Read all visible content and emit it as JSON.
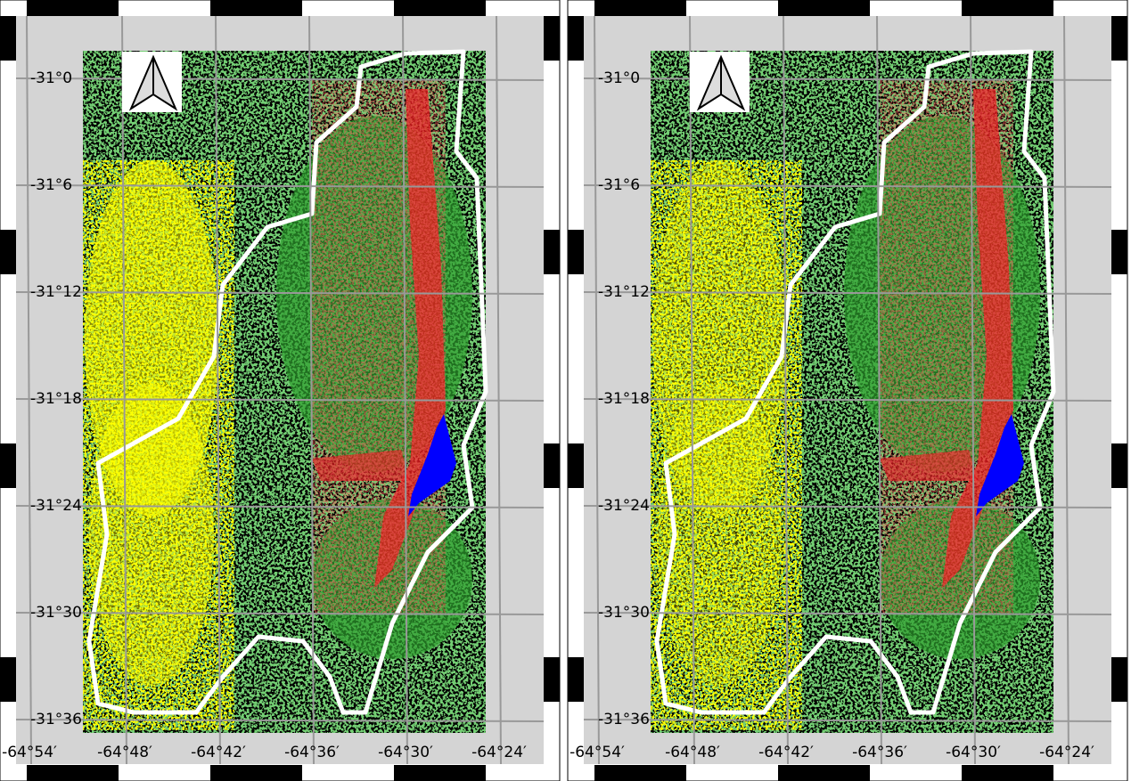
{
  "panels": [
    {
      "lat_labels": [
        "-31°0",
        "-31°6",
        "-31°12",
        "-31°18",
        "-31°24",
        "-31°30",
        "-31°36"
      ],
      "lon_labels": [
        "-64°54′",
        "-64°48′",
        "-64°42′",
        "-64°36′",
        "-64°30′",
        "-64°24′"
      ]
    },
    {
      "lat_labels": [
        "-31°0",
        "-31°6",
        "-31°12",
        "-31°18",
        "-31°24",
        "-31°30",
        "-31°36"
      ],
      "lon_labels": [
        "-64°54′",
        "-64°48′",
        "-64°42′",
        "-64°36′",
        "-64°30′",
        "-64°24′"
      ]
    }
  ]
}
